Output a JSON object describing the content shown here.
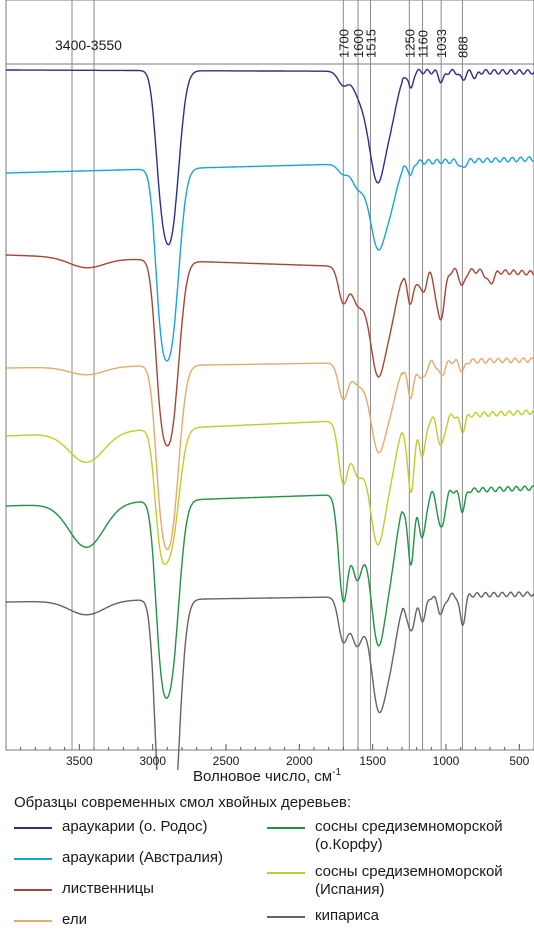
{
  "chart_data": {
    "type": "line",
    "xlabel": "Волновое число, см",
    "xlabel_sup": "-1",
    "x_reversed": true,
    "xlim": [
      4000,
      400
    ],
    "x_ticks": [
      3500,
      3000,
      2500,
      2000,
      1500,
      1000,
      500
    ],
    "x_tick_labels": [
      "3500",
      "3000",
      "2500",
      "2000",
      "1500",
      "1000",
      "500"
    ],
    "marker_lines": [
      {
        "x": 3550,
        "label": ""
      },
      {
        "x": 3400,
        "label": ""
      },
      {
        "x": 1700,
        "label": "1700"
      },
      {
        "x": 1600,
        "label": "1600"
      },
      {
        "x": 1515,
        "label": "1515"
      },
      {
        "x": 1250,
        "label": "1250"
      },
      {
        "x": 1160,
        "label": "1160"
      },
      {
        "x": 1033,
        "label": "1033"
      },
      {
        "x": 888,
        "label": "888"
      }
    ],
    "range_label": "3400-3550",
    "legend_title": "Образцы современных смол хвойных деревьев:",
    "grid": false,
    "series": [
      {
        "name": "араукарии (о. Родос)",
        "color": "#2b2f8a",
        "baseline": 70,
        "bands": [
          [
            2960,
            40,
            0.02,
            "d"
          ],
          [
            2925,
            80,
            0.017,
            "d"
          ],
          [
            2870,
            58,
            0.016,
            "d"
          ],
          [
            2855,
            76,
            0.014,
            "d"
          ],
          [
            1700,
            14,
            0.02,
            "d"
          ],
          [
            1610,
            10,
            0.02,
            "d"
          ],
          [
            1515,
            50,
            0.012,
            "d"
          ],
          [
            1460,
            68,
            0.016,
            "d"
          ],
          [
            1380,
            46,
            0.015,
            "d"
          ],
          [
            1240,
            18,
            0.05,
            "d"
          ],
          [
            1030,
            10,
            0.04,
            "d"
          ],
          [
            888,
            8,
            0.04,
            "d"
          ],
          [
            800,
            6,
            0.05,
            "d"
          ]
        ],
        "slope": 2
      },
      {
        "name": "араукарии (Австралия)",
        "color": "#1aa3dd",
        "baseline": 173,
        "bands": [
          [
            2960,
            60,
            0.02,
            "d"
          ],
          [
            2925,
            90,
            0.017,
            "d"
          ],
          [
            2870,
            60,
            0.016,
            "d"
          ],
          [
            2855,
            82,
            0.014,
            "d"
          ],
          [
            1700,
            10,
            0.02,
            "d"
          ],
          [
            1610,
            16,
            0.02,
            "d"
          ],
          [
            1515,
            30,
            0.012,
            "d"
          ],
          [
            1460,
            58,
            0.016,
            "d"
          ],
          [
            1380,
            40,
            0.015,
            "d"
          ],
          [
            1240,
            14,
            0.05,
            "d"
          ],
          [
            888,
            8,
            0.04,
            "d"
          ]
        ],
        "slope": -14
      },
      {
        "name": "лиственницы",
        "color": "#a64735",
        "baseline": 255,
        "bands": [
          [
            3450,
            10,
            0.006,
            "d"
          ],
          [
            2960,
            58,
            0.02,
            "d"
          ],
          [
            2925,
            84,
            0.017,
            "d"
          ],
          [
            2870,
            60,
            0.016,
            "d"
          ],
          [
            2855,
            80,
            0.014,
            "d"
          ],
          [
            1700,
            36,
            0.022,
            "d"
          ],
          [
            1610,
            26,
            0.02,
            "d"
          ],
          [
            1515,
            40,
            0.012,
            "d"
          ],
          [
            1460,
            72,
            0.016,
            "d"
          ],
          [
            1380,
            48,
            0.015,
            "d"
          ],
          [
            1240,
            34,
            0.03,
            "d"
          ],
          [
            1160,
            24,
            0.03,
            "d"
          ],
          [
            1040,
            50,
            0.025,
            "d"
          ],
          [
            888,
            16,
            0.04,
            "d"
          ],
          [
            700,
            12,
            0.03,
            "d"
          ]
        ],
        "slope": 18
      },
      {
        "name": "ели",
        "color": "#e6aa6c",
        "baseline": 368,
        "bands": [
          [
            3450,
            8,
            0.006,
            "d"
          ],
          [
            2960,
            50,
            0.02,
            "d"
          ],
          [
            2925,
            88,
            0.017,
            "d"
          ],
          [
            2870,
            58,
            0.016,
            "d"
          ],
          [
            2855,
            78,
            0.014,
            "d"
          ],
          [
            1700,
            36,
            0.022,
            "d"
          ],
          [
            1610,
            14,
            0.02,
            "d"
          ],
          [
            1515,
            26,
            0.012,
            "d"
          ],
          [
            1460,
            64,
            0.016,
            "d"
          ],
          [
            1380,
            40,
            0.015,
            "d"
          ],
          [
            1240,
            34,
            0.03,
            "d"
          ],
          [
            1160,
            18,
            0.03,
            "d"
          ],
          [
            1033,
            14,
            0.03,
            "d"
          ],
          [
            888,
            10,
            0.04,
            "d"
          ]
        ],
        "slope": -8
      },
      {
        "name": "сосны средиземноморской (о.Корфу)",
        "color": "#1f9442",
        "baseline": 506,
        "bands": [
          [
            3450,
            44,
            0.006,
            "d"
          ],
          [
            2960,
            60,
            0.02,
            "d"
          ],
          [
            2925,
            96,
            0.017,
            "d"
          ],
          [
            2870,
            62,
            0.016,
            "d"
          ],
          [
            2855,
            80,
            0.014,
            "d"
          ],
          [
            1700,
            104,
            0.022,
            "d"
          ],
          [
            1610,
            70,
            0.02,
            "d"
          ],
          [
            1515,
            50,
            0.012,
            "d"
          ],
          [
            1460,
            104,
            0.016,
            "d"
          ],
          [
            1380,
            68,
            0.015,
            "d"
          ],
          [
            1240,
            70,
            0.03,
            "d"
          ],
          [
            1160,
            46,
            0.03,
            "d"
          ],
          [
            1033,
            38,
            0.03,
            "d"
          ],
          [
            888,
            20,
            0.04,
            "d"
          ]
        ],
        "slope": -18
      },
      {
        "name": "сосны средиземноморской (Испания)",
        "color": "#c2cc2a",
        "baseline": 436,
        "bands": [
          [
            3450,
            30,
            0.006,
            "d"
          ],
          [
            2960,
            54,
            0.02,
            "d"
          ],
          [
            2925,
            62,
            0.017,
            "d"
          ],
          [
            2870,
            38,
            0.016,
            "d"
          ],
          [
            2855,
            58,
            0.014,
            "d"
          ],
          [
            1700,
            62,
            0.022,
            "d"
          ],
          [
            1610,
            40,
            0.02,
            "d"
          ],
          [
            1515,
            52,
            0.012,
            "d"
          ],
          [
            1460,
            80,
            0.016,
            "d"
          ],
          [
            1380,
            50,
            0.015,
            "d"
          ],
          [
            1240,
            74,
            0.03,
            "d"
          ],
          [
            1160,
            38,
            0.03,
            "d"
          ],
          [
            1033,
            30,
            0.03,
            "d"
          ],
          [
            888,
            16,
            0.04,
            "d"
          ]
        ],
        "slope": -24
      },
      {
        "name": "кипариса",
        "color": "#6b6161",
        "baseline": 602,
        "bands": [
          [
            3450,
            14,
            0.006,
            "d"
          ],
          [
            2960,
            90,
            0.02,
            "d"
          ],
          [
            2925,
            132,
            0.017,
            "d"
          ],
          [
            2870,
            100,
            0.016,
            "d"
          ],
          [
            2855,
            110,
            0.014,
            "d"
          ],
          [
            1700,
            44,
            0.022,
            "d"
          ],
          [
            1610,
            42,
            0.02,
            "d"
          ],
          [
            1515,
            24,
            0.012,
            "d"
          ],
          [
            1460,
            86,
            0.016,
            "d"
          ],
          [
            1380,
            58,
            0.015,
            "d"
          ],
          [
            1240,
            36,
            0.03,
            "d"
          ],
          [
            1160,
            24,
            0.03,
            "d"
          ],
          [
            1033,
            18,
            0.03,
            "d"
          ],
          [
            888,
            30,
            0.04,
            "d"
          ]
        ],
        "slope": -8
      }
    ],
    "legend_order": [
      0,
      1,
      2,
      3,
      4,
      5,
      6
    ]
  }
}
